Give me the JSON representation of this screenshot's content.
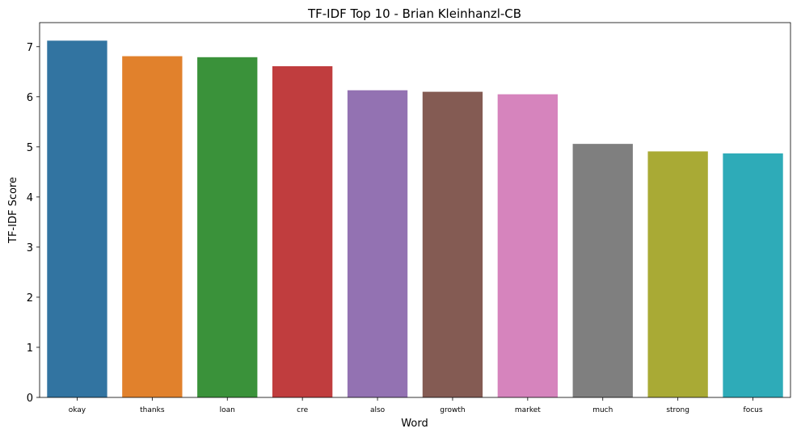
{
  "chart_data": {
    "type": "bar",
    "title": "TF-IDF Top 10 - Brian Kleinhanzl-CB",
    "xlabel": "Word",
    "ylabel": "TF-IDF Score",
    "categories": [
      "okay",
      "thanks",
      "loan",
      "cre",
      "also",
      "growth",
      "market",
      "much",
      "strong",
      "focus"
    ],
    "values": [
      7.12,
      6.81,
      6.79,
      6.61,
      6.13,
      6.1,
      6.05,
      5.06,
      4.91,
      4.87
    ],
    "colors": [
      "#3274a1",
      "#e1812c",
      "#3a923a",
      "#c03d3e",
      "#9372b2",
      "#845b53",
      "#d684bd",
      "#7f7f7f",
      "#a9aa35",
      "#2eabb8"
    ],
    "yticks": [
      "0",
      "1",
      "2",
      "3",
      "4",
      "5",
      "6",
      "7"
    ],
    "ylim": [
      0,
      7.48
    ],
    "grid": false
  }
}
